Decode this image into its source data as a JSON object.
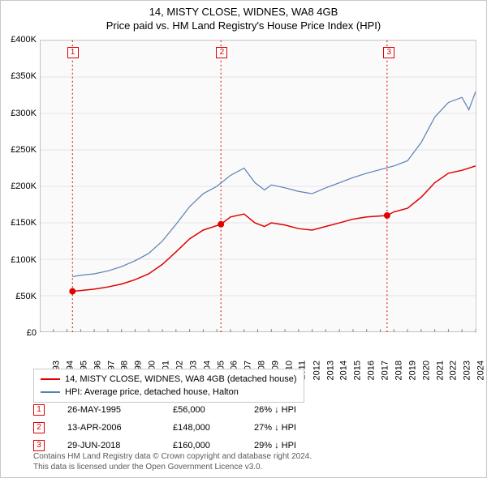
{
  "title_line1": "14, MISTY CLOSE, WIDNES, WA8 4GB",
  "title_line2": "Price paid vs. HM Land Registry's House Price Index (HPI)",
  "chart": {
    "type": "line",
    "background_color": "#fafafa",
    "axis_color": "#888888",
    "grid_color": "#e4e4e4",
    "xlim": [
      1993,
      2025
    ],
    "ylim": [
      0,
      400000
    ],
    "ytick_step": 50000,
    "ylabels": [
      "£0",
      "£50K",
      "£100K",
      "£150K",
      "£200K",
      "£250K",
      "£300K",
      "£350K",
      "£400K"
    ],
    "xticks": [
      1993,
      1994,
      1995,
      1996,
      1997,
      1998,
      1999,
      2000,
      2001,
      2002,
      2003,
      2004,
      2005,
      2006,
      2007,
      2008,
      2009,
      2010,
      2011,
      2012,
      2013,
      2014,
      2015,
      2016,
      2017,
      2018,
      2019,
      2020,
      2021,
      2022,
      2023,
      2024,
      2025
    ],
    "marker_line_color": "#e00000",
    "marker_dash": "2,3",
    "series": [
      {
        "name": "14, MISTY CLOSE, WIDNES, WA8 4GB (detached house)",
        "color": "#e00000",
        "line_width": 1.5,
        "points": [
          [
            1995.4,
            56000
          ],
          [
            1996,
            57000
          ],
          [
            1997,
            59000
          ],
          [
            1998,
            62000
          ],
          [
            1999,
            66000
          ],
          [
            2000,
            72000
          ],
          [
            2001,
            80000
          ],
          [
            2002,
            93000
          ],
          [
            2003,
            110000
          ],
          [
            2004,
            128000
          ],
          [
            2005,
            140000
          ],
          [
            2006.3,
            148000
          ],
          [
            2007,
            158000
          ],
          [
            2008,
            162000
          ],
          [
            2008.8,
            150000
          ],
          [
            2009.5,
            145000
          ],
          [
            2010,
            150000
          ],
          [
            2011,
            147000
          ],
          [
            2012,
            142000
          ],
          [
            2013,
            140000
          ],
          [
            2014,
            145000
          ],
          [
            2015,
            150000
          ],
          [
            2016,
            155000
          ],
          [
            2017,
            158000
          ],
          [
            2018.5,
            160000
          ],
          [
            2019,
            165000
          ],
          [
            2020,
            170000
          ],
          [
            2021,
            185000
          ],
          [
            2022,
            205000
          ],
          [
            2023,
            218000
          ],
          [
            2024,
            222000
          ],
          [
            2025,
            228000
          ]
        ]
      },
      {
        "name": "HPI: Average price, detached house, Halton",
        "color": "#5b7fb4",
        "line_width": 1.2,
        "points": [
          [
            1995.4,
            76000
          ],
          [
            1996,
            78000
          ],
          [
            1997,
            80000
          ],
          [
            1998,
            84000
          ],
          [
            1999,
            90000
          ],
          [
            2000,
            98000
          ],
          [
            2001,
            108000
          ],
          [
            2002,
            125000
          ],
          [
            2003,
            148000
          ],
          [
            2004,
            172000
          ],
          [
            2005,
            190000
          ],
          [
            2006,
            200000
          ],
          [
            2007,
            215000
          ],
          [
            2008,
            225000
          ],
          [
            2008.8,
            205000
          ],
          [
            2009.5,
            195000
          ],
          [
            2010,
            202000
          ],
          [
            2011,
            198000
          ],
          [
            2012,
            193000
          ],
          [
            2013,
            190000
          ],
          [
            2014,
            198000
          ],
          [
            2015,
            205000
          ],
          [
            2016,
            212000
          ],
          [
            2017,
            218000
          ],
          [
            2018,
            223000
          ],
          [
            2019,
            228000
          ],
          [
            2020,
            235000
          ],
          [
            2021,
            260000
          ],
          [
            2022,
            295000
          ],
          [
            2023,
            315000
          ],
          [
            2024,
            322000
          ],
          [
            2024.5,
            305000
          ],
          [
            2025,
            330000
          ]
        ]
      }
    ],
    "transactions": [
      {
        "n": "1",
        "year": 1995.4,
        "price": 56000
      },
      {
        "n": "2",
        "year": 2006.3,
        "price": 148000
      },
      {
        "n": "3",
        "year": 2018.5,
        "price": 160000
      }
    ],
    "marker_dot_color": "#e00000",
    "marker_dot_radius": 4
  },
  "legend": {
    "items": [
      {
        "color": "#e00000",
        "label": "14, MISTY CLOSE, WIDNES, WA8 4GB (detached house)"
      },
      {
        "color": "#5b7fb4",
        "label": "HPI: Average price, detached house, Halton"
      }
    ]
  },
  "transactions_table": [
    {
      "n": "1",
      "date": "26-MAY-1995",
      "price": "£56,000",
      "diff": "26% ↓ HPI"
    },
    {
      "n": "2",
      "date": "13-APR-2006",
      "price": "£148,000",
      "diff": "27% ↓ HPI"
    },
    {
      "n": "3",
      "date": "29-JUN-2018",
      "price": "£160,000",
      "diff": "29% ↓ HPI"
    }
  ],
  "footer_line1": "Contains HM Land Registry data © Crown copyright and database right 2024.",
  "footer_line2": "This data is licensed under the Open Government Licence v3.0."
}
